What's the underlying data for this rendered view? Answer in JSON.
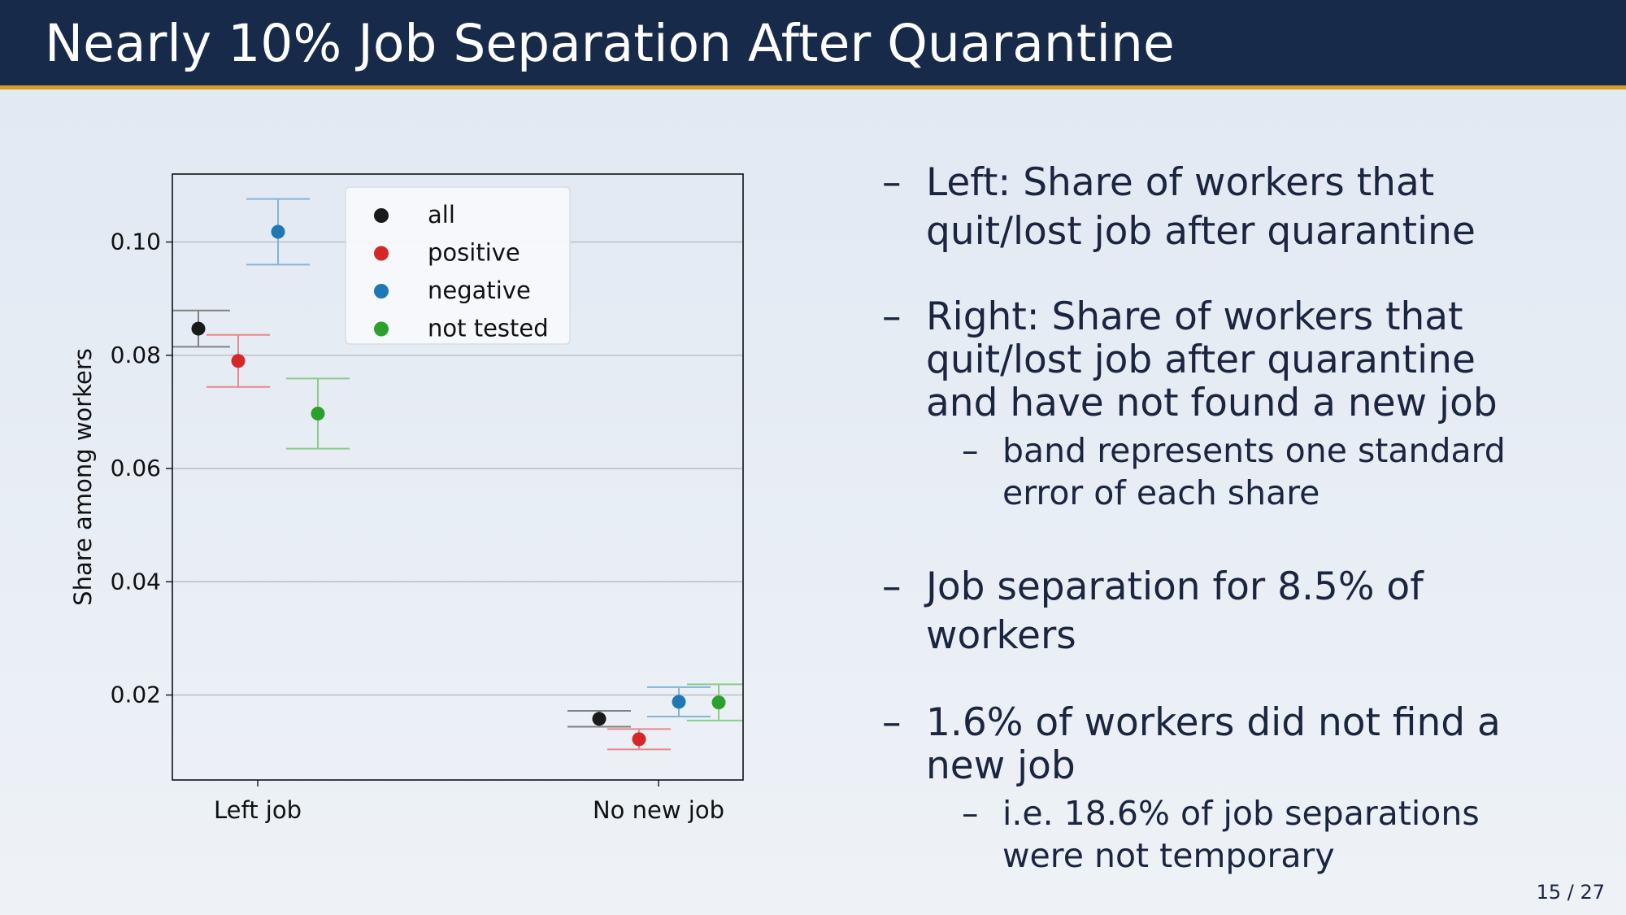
{
  "header": {
    "title": "Nearly 10% Job Separation After Quarantine"
  },
  "chart_data": {
    "type": "scatter",
    "subtype": "point-with-error-bars",
    "categories": [
      "Left job",
      "No new job"
    ],
    "ylabel": "Share among workers",
    "xlabel": "",
    "ylim": [
      0.005,
      0.112
    ],
    "yticks": [
      0.02,
      0.04,
      0.06,
      0.08,
      0.1
    ],
    "ytick_labels": [
      "0.02",
      "0.04",
      "0.06",
      "0.08",
      "0.10"
    ],
    "grid": "horizontal",
    "legend_position": "top-center",
    "series": [
      {
        "name": "all",
        "color": "#1a1a1a",
        "values": [
          0.0847,
          0.0158
        ],
        "errors": [
          0.0032,
          0.0014
        ]
      },
      {
        "name": "positive",
        "color": "#d62728",
        "values": [
          0.079,
          0.0122
        ],
        "errors": [
          0.0046,
          0.0018
        ]
      },
      {
        "name": "negative",
        "color": "#1f77b4",
        "values": [
          0.1018,
          0.0188
        ],
        "errors": [
          0.0058,
          0.0026
        ]
      },
      {
        "name": "not tested",
        "color": "#2ca02c",
        "values": [
          0.0697,
          0.0187
        ],
        "errors": [
          0.0062,
          0.0032
        ]
      }
    ]
  },
  "bullets": [
    {
      "text_lines": [
        "Left: Share of workers that",
        "quit/lost job after quarantine"
      ],
      "subs": []
    },
    {
      "text_lines": [
        "Right: Share of workers that",
        "quit/lost job after quarantine",
        "and have not found a new job"
      ],
      "subs": [
        {
          "lines": [
            "band represents one standard",
            "error of each share"
          ]
        }
      ]
    },
    {
      "text_lines": [
        "Job separation for 8.5% of",
        "workers"
      ],
      "subs": []
    },
    {
      "text_lines": [
        "1.6% of workers did not find a",
        "new job"
      ],
      "subs": [
        {
          "lines": [
            "i.e. 18.6% of job separations",
            "were not temporary"
          ]
        }
      ]
    }
  ],
  "bullet_marker": "–",
  "page_number": "15 / 27"
}
